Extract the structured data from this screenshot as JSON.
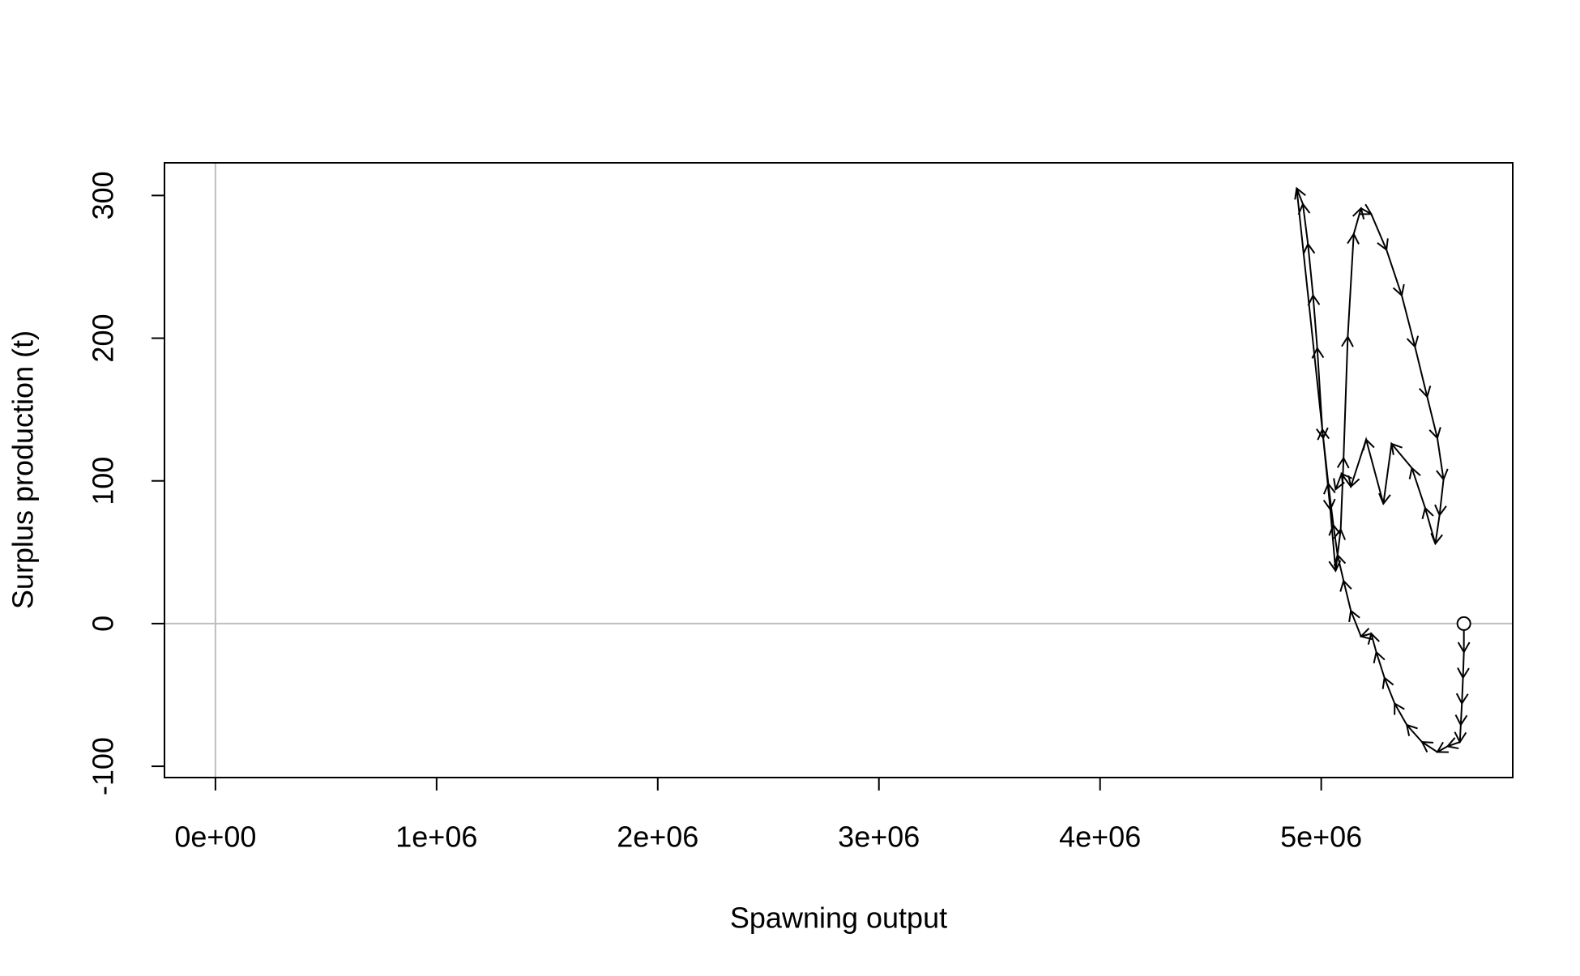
{
  "chart_data": {
    "type": "phase-path",
    "x_label": "Spawning output",
    "y_label": "Surplus production (t)",
    "x": [
      5645000,
      5645000,
      5641000,
      5636000,
      5631000,
      5627000,
      5571000,
      5525000,
      5456000,
      5387000,
      5332000,
      5286000,
      5249000,
      5226000,
      5180000,
      5134000,
      5101000,
      5074000,
      5055000,
      5032000,
      5005000,
      4982000,
      4963000,
      4940000,
      4917000,
      4889000,
      5009000,
      5041000,
      5065000,
      5088000,
      5101000,
      5120000,
      5147000,
      5180000,
      5226000,
      5295000,
      5364000,
      5424000,
      5479000,
      5525000,
      5553000,
      5535000,
      5516000,
      5470000,
      5410000,
      5318000,
      5281000,
      5203000,
      5134000,
      5092000,
      5065000
    ],
    "values": [
      0,
      -20,
      -38,
      -56,
      -71,
      -83,
      -86,
      -90,
      -83,
      -71,
      -56,
      -38,
      -20,
      -7,
      -9,
      9,
      30,
      48,
      69,
      98,
      136,
      193,
      230,
      266,
      294,
      305,
      130,
      80,
      37,
      66,
      116,
      201,
      273,
      291,
      287,
      262,
      230,
      194,
      159,
      130,
      101,
      76,
      56,
      81,
      109,
      126,
      84,
      129,
      96,
      105,
      94
    ],
    "color": "#000000",
    "ref_lines": {
      "x": 0,
      "y": 0,
      "color": "#bebebe"
    },
    "xlim": [
      -230400,
      5866000
    ],
    "ylim": [
      -107.9,
      322.9
    ],
    "xticks": [
      {
        "value": 0,
        "label": "0e+00"
      },
      {
        "value": 1000000,
        "label": "1e+06"
      },
      {
        "value": 2000000,
        "label": "2e+06"
      },
      {
        "value": 3000000,
        "label": "3e+06"
      },
      {
        "value": 4000000,
        "label": "4e+06"
      },
      {
        "value": 5000000,
        "label": "5e+06"
      }
    ],
    "yticks": [
      -100,
      0,
      100,
      200,
      300
    ]
  }
}
